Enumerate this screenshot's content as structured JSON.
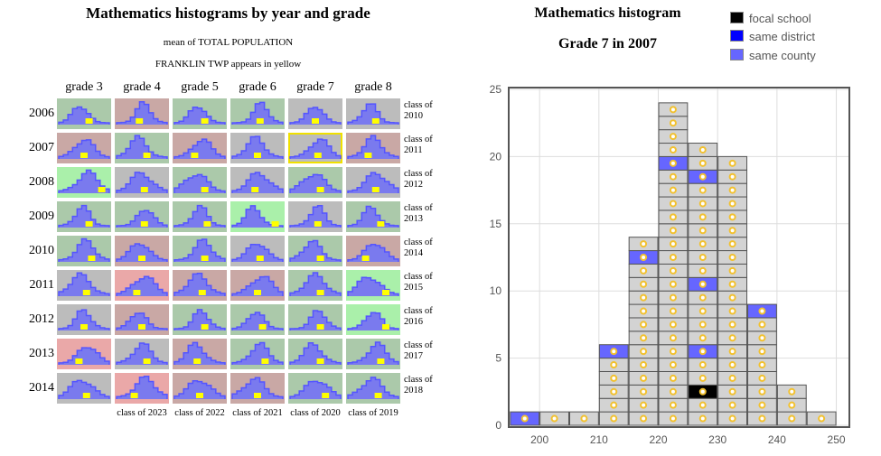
{
  "left": {
    "title": "Mathematics histograms by year and grade",
    "subtitle1": "mean of TOTAL POPULATION",
    "subtitle2": "FRANKLIN TWP appears in yellow",
    "grades": [
      "grade 3",
      "grade 4",
      "grade 5",
      "grade 6",
      "grade 7",
      "grade 8"
    ],
    "years": [
      "2006",
      "2007",
      "2008",
      "2009",
      "2010",
      "2011",
      "2012",
      "2013",
      "2014"
    ],
    "selected": {
      "year": "2007",
      "grade": "grade 7"
    },
    "bg_colors": {
      "G": "#abc9aa",
      "P": "#c9a8a5",
      "Gr": "#bcbcbc",
      "LG": "#aaf0aa",
      "LP": "#eaa8a8"
    },
    "cell_bg": [
      [
        "G",
        "P",
        "G",
        "G",
        "Gr",
        "Gr"
      ],
      [
        "P",
        "G",
        "P",
        "Gr",
        "Gr",
        "P"
      ],
      [
        "LG",
        "Gr",
        "G",
        "Gr",
        "G",
        "Gr"
      ],
      [
        "G",
        "G",
        "G",
        "LG",
        "Gr",
        "G"
      ],
      [
        "G",
        "P",
        "G",
        "Gr",
        "G",
        "P"
      ],
      [
        "Gr",
        "LP",
        "P",
        "P",
        "G",
        "LG"
      ],
      [
        "Gr",
        "P",
        "G",
        "G",
        "G",
        "LG"
      ],
      [
        "LP",
        "Gr",
        "P",
        "G",
        "G",
        "G"
      ],
      [
        "Gr",
        "LP",
        "P",
        "P",
        "G",
        "G"
      ]
    ],
    "focal_marker": [
      [
        0.6,
        0.45,
        0.6,
        0.55,
        0.5,
        0.55
      ],
      [
        0.5,
        0.6,
        0.4,
        0.5,
        0.55,
        0.4
      ],
      [
        0.85,
        0.55,
        0.6,
        0.45,
        0.6,
        0.55
      ],
      [
        0.6,
        0.55,
        0.65,
        0.85,
        0.55,
        0.65
      ],
      [
        0.65,
        0.5,
        0.6,
        0.55,
        0.6,
        0.35
      ],
      [
        0.55,
        0.4,
        0.55,
        0.5,
        0.6,
        0.75
      ],
      [
        0.5,
        0.5,
        0.6,
        0.6,
        0.6,
        0.75
      ],
      [
        0.4,
        0.6,
        0.45,
        0.65,
        0.6,
        0.65
      ],
      [
        0.55,
        0.35,
        0.5,
        0.5,
        0.7,
        0.6
      ]
    ],
    "class_labels_right": [
      "class of\n2010",
      "class of\n2011",
      "class of\n2012",
      "class of\n2013",
      "class of\n2014",
      "class of\n2015",
      "class of\n2016",
      "class of\n2017",
      "class of\n2018"
    ],
    "class_labels_bottom": [
      "class of 2023",
      "class of 2022",
      "class of 2021",
      "class of 2020",
      "class of 2019"
    ]
  },
  "legend": [
    {
      "label": "focal school",
      "color": "#000000"
    },
    {
      "label": "same district",
      "color": "#0000ff"
    },
    {
      "label": "same county",
      "color": "#6666ff"
    }
  ],
  "chart_data": {
    "type": "bar",
    "title": "Mathematics histogram",
    "subtitle": "Grade 7 in 2007",
    "bin_width": 5,
    "bins": [
      195,
      200,
      205,
      210,
      215,
      220,
      225,
      230,
      235,
      240,
      245
    ],
    "counts": [
      1,
      1,
      1,
      6,
      14,
      24,
      21,
      20,
      9,
      3,
      1
    ],
    "highlight": {
      "same_county": [
        [
          195,
          1
        ],
        [
          210,
          6
        ],
        [
          215,
          13
        ],
        [
          220,
          20
        ],
        [
          225,
          6
        ],
        [
          225,
          11
        ],
        [
          225,
          19
        ],
        [
          235,
          9
        ]
      ],
      "focal_school": [
        [
          225,
          3
        ]
      ]
    },
    "xlim": [
      194.8,
      252.2
    ],
    "ylim": [
      0,
      25
    ],
    "xticks": [
      "200",
      "210",
      "220",
      "230",
      "240",
      "250"
    ],
    "yticks": [
      "0",
      "5",
      "10",
      "15",
      "20",
      "25"
    ],
    "grid": true,
    "legend_position": "top-right",
    "colors": {
      "school": "#d3d3d3",
      "same_county": "#6666ff",
      "focal": "#000000",
      "dot": "#f2c12e"
    }
  }
}
